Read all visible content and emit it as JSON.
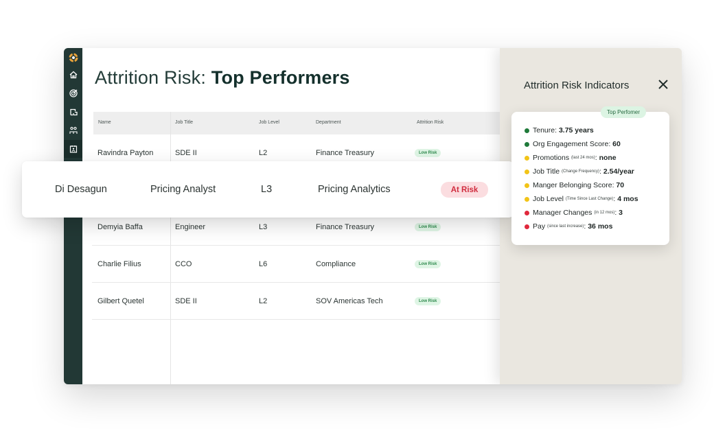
{
  "page": {
    "title_prefix": "Attrition Risk: ",
    "title_bold": "Top Performers"
  },
  "sidebar": {
    "icons": [
      "logo-icon",
      "home-icon",
      "target-icon",
      "docs-icon",
      "people-icon",
      "calendar-user-icon"
    ]
  },
  "table": {
    "headers": {
      "name": "Name",
      "job_title": "Job Title",
      "job_level": "Job Level",
      "department": "Department",
      "attrition_risk": "Attrition Risk"
    },
    "rows": [
      {
        "name": "Ravindra Payton",
        "job_title": "SDE II",
        "job_level": "L2",
        "department": "Finance Treasury",
        "risk": "Low Risk"
      },
      {
        "name": "Demyia Baffa",
        "job_title": "Engineer",
        "job_level": "L3",
        "department": "Finance Treasury",
        "risk": "Low Risk"
      },
      {
        "name": "Charlie Filius",
        "job_title": "CCO",
        "job_level": "L6",
        "department": "Compliance",
        "risk": "Low Risk"
      },
      {
        "name": "Gilbert Quetel",
        "job_title": "SDE II",
        "job_level": "L2",
        "department": "SOV Americas Tech",
        "risk": "Low Risk"
      }
    ]
  },
  "highlight": {
    "name": "Di Desagun",
    "job_title": "Pricing Analyst",
    "job_level": "L3",
    "department": "Pricing Analytics",
    "risk": "At Risk"
  },
  "panel": {
    "title": "Attrition Risk Indicators",
    "badge": "Top Perfomer",
    "indicators": [
      {
        "label": "Tenure",
        "note": "",
        "value": "3.75 years",
        "color": "#1f7a3a"
      },
      {
        "label": "Org Engagement Score",
        "note": "",
        "value": "60",
        "color": "#1f7a3a"
      },
      {
        "label": "Promotions",
        "note": "(last 24 mos)",
        "value": "none",
        "color": "#f2c418"
      },
      {
        "label": "Job Title",
        "note": "(Change Frequency)",
        "value": "2.54/year",
        "color": "#f2c418"
      },
      {
        "label": "Manger Belonging Score",
        "note": "",
        "value": "70",
        "color": "#f2c418"
      },
      {
        "label": "Job Level",
        "note": "(Time Since Last Change)",
        "value": "4 mos",
        "color": "#f2c418"
      },
      {
        "label": "Manager Changes",
        "note": "(in 12 mos)",
        "value": "3",
        "color": "#e0283c"
      },
      {
        "label": "Pay",
        "note": "(since last increase)",
        "value": "36 mos",
        "color": "#e0283c"
      }
    ]
  },
  "colors": {
    "sidebar": "#223835",
    "accent": "#14302c",
    "panel_bg": "#eae7e0",
    "low_risk": "#2e8a4d",
    "at_risk": "#d02c3e"
  }
}
